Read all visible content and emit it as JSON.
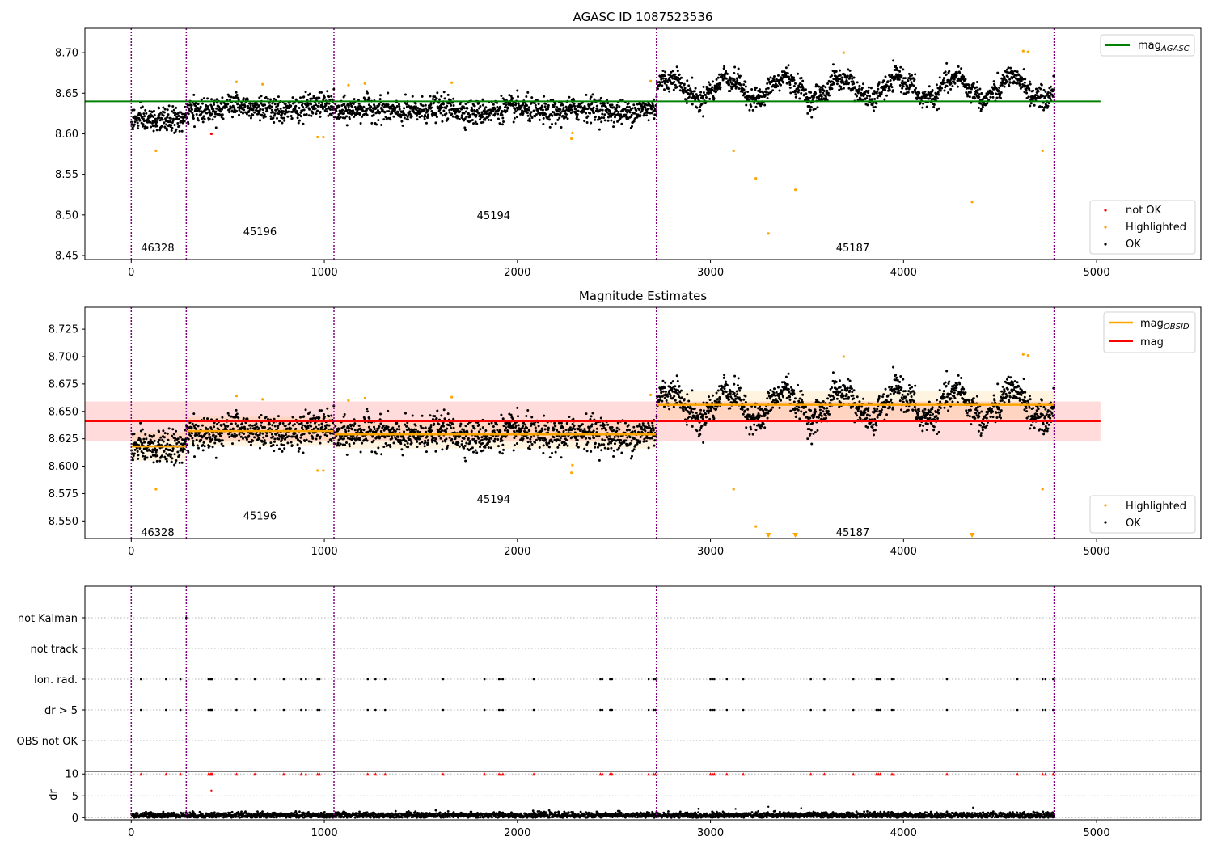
{
  "colors": {
    "ok": "#000000",
    "highlighted": "#ffa500",
    "not_ok": "#ff0000",
    "mag_agasc": "#008000",
    "mag_obsid": "#ffa500",
    "mag": "#ff0000",
    "obs_boundary": "#800080",
    "mag_band": "#ffcccc"
  },
  "chart_data": [
    {
      "type": "scatter",
      "title": "AGASC ID 1087523536",
      "xlim": [
        -240,
        5540
      ],
      "ylim": [
        8.445,
        8.73
      ],
      "xticks": [
        0,
        1000,
        2000,
        3000,
        4000,
        5000
      ],
      "yticks": [
        8.45,
        8.5,
        8.55,
        8.6,
        8.65,
        8.7
      ],
      "ytick_labels": [
        "8.45",
        "8.50",
        "8.55",
        "8.60",
        "8.65",
        "8.70"
      ],
      "mag_agasc": 8.64,
      "mag_agasc_xrange": [
        -240,
        5020
      ],
      "observations": [
        {
          "obsid": "46328",
          "x_start": 0,
          "x_end": 285,
          "label_y": 8.46,
          "base": 8.617
        },
        {
          "obsid": "45196",
          "x_start": 285,
          "x_end": 1050,
          "label_y": 8.48,
          "base": 8.632
        },
        {
          "obsid": "45194",
          "x_start": 1050,
          "x_end": 2720,
          "label_y": 8.5,
          "base": 8.629
        },
        {
          "obsid": "45187",
          "x_start": 2720,
          "x_end": 4780,
          "label_y": 8.46,
          "base": 8.656
        }
      ],
      "highlighted_points": [
        [
          128,
          8.579
        ],
        [
          545,
          8.664
        ],
        [
          680,
          8.661
        ],
        [
          965,
          8.596
        ],
        [
          995,
          8.596
        ],
        [
          1125,
          8.66
        ],
        [
          1210,
          8.662
        ],
        [
          1660,
          8.663
        ],
        [
          2280,
          8.594
        ],
        [
          2285,
          8.601
        ],
        [
          2690,
          8.665
        ],
        [
          3120,
          8.579
        ],
        [
          3235,
          8.545
        ],
        [
          3300,
          8.477
        ],
        [
          3440,
          8.531
        ],
        [
          3690,
          8.7
        ],
        [
          4355,
          8.516
        ],
        [
          4620,
          8.702
        ],
        [
          4645,
          8.701
        ],
        [
          4720,
          8.579
        ]
      ],
      "not_ok_points": [
        [
          415,
          8.6
        ]
      ],
      "legend_lines": [
        {
          "label": "mag",
          "sub": "AGASC"
        }
      ],
      "legend_points": [
        "not OK",
        "Highlighted",
        "OK"
      ]
    },
    {
      "type": "scatter",
      "title": "Magnitude Estimates",
      "xlim": [
        -240,
        5540
      ],
      "ylim": [
        8.534,
        8.745
      ],
      "xticks": [
        0,
        1000,
        2000,
        3000,
        4000,
        5000
      ],
      "yticks": [
        8.55,
        8.575,
        8.6,
        8.625,
        8.65,
        8.675,
        8.7,
        8.725
      ],
      "ytick_labels": [
        "8.550",
        "8.575",
        "8.600",
        "8.625",
        "8.650",
        "8.675",
        "8.700",
        "8.725"
      ],
      "mag": 8.641,
      "mag_band": [
        8.623,
        8.659
      ],
      "mag_xrange": [
        -240,
        5020
      ],
      "mag_obsid": [
        {
          "x_start": 0,
          "x_end": 285,
          "value": 8.618
        },
        {
          "x_start": 285,
          "x_end": 1050,
          "value": 8.632
        },
        {
          "x_start": 1050,
          "x_end": 2720,
          "value": 8.629
        },
        {
          "x_start": 2720,
          "x_end": 4780,
          "value": 8.656
        }
      ],
      "observation_labels": [
        {
          "obsid": "46328",
          "x": 50,
          "y": 8.54
        },
        {
          "obsid": "45196",
          "x": 580,
          "y": 8.555
        },
        {
          "obsid": "45194",
          "x": 1790,
          "y": 8.57
        },
        {
          "obsid": "45187",
          "x": 3650,
          "y": 8.54
        }
      ],
      "highlighted_points": [
        [
          128,
          8.579
        ],
        [
          545,
          8.664
        ],
        [
          680,
          8.661
        ],
        [
          965,
          8.596
        ],
        [
          995,
          8.596
        ],
        [
          1125,
          8.66
        ],
        [
          1210,
          8.662
        ],
        [
          1660,
          8.663
        ],
        [
          2280,
          8.594
        ],
        [
          2285,
          8.601
        ],
        [
          2690,
          8.665
        ],
        [
          3120,
          8.579
        ],
        [
          3235,
          8.545
        ],
        [
          3690,
          8.7
        ],
        [
          4620,
          8.702
        ],
        [
          4645,
          8.701
        ],
        [
          4720,
          8.579
        ]
      ],
      "offscale_markers": [
        3300,
        3440,
        4355
      ],
      "legend_lines": [
        {
          "label": "mag",
          "sub": "OBSID"
        },
        {
          "label": "mag",
          "sub": ""
        }
      ],
      "legend_points": [
        "Highlighted",
        "OK"
      ]
    },
    {
      "type": "scatter",
      "xlim": [
        -240,
        5540
      ],
      "flag_rows": [
        "not Kalman",
        "not track",
        "Ion. rad.",
        "dr > 5",
        "OBS not OK"
      ],
      "flag_events": {
        "not Kalman": [
          285
        ],
        "not track": [],
        "Ion. rad.": [
          50,
          180,
          255,
          400,
          410,
          415,
          420,
          545,
          640,
          790,
          880,
          905,
          965,
          975,
          1225,
          1265,
          1315,
          1615,
          1830,
          1905,
          1915,
          1925,
          2085,
          2430,
          2440,
          2480,
          2490,
          2680,
          2705,
          2715,
          3000,
          3010,
          3020,
          3085,
          3170,
          3520,
          3590,
          3740,
          3860,
          3870,
          3880,
          3940,
          3950,
          4225,
          4590,
          4720,
          4735,
          4775
        ],
        "dr > 5": [
          50,
          180,
          255,
          400,
          410,
          415,
          420,
          545,
          640,
          790,
          880,
          905,
          965,
          975,
          1225,
          1265,
          1315,
          1615,
          1830,
          1905,
          1915,
          1925,
          2085,
          2430,
          2440,
          2480,
          2490,
          2680,
          2705,
          2715,
          3000,
          3010,
          3020,
          3085,
          3170,
          3520,
          3590,
          3740,
          3860,
          3870,
          3880,
          3940,
          3950,
          4225,
          4590,
          4720,
          4735,
          4775
        ],
        "OBS not OK": []
      },
      "dr_ylabel": "dr",
      "dr_ylim": [
        -0.5,
        10.6
      ],
      "dr_yticks": [
        0,
        5,
        10
      ],
      "dr_clipped_points": [
        50,
        180,
        255,
        400,
        410,
        415,
        420,
        545,
        640,
        790,
        880,
        905,
        965,
        975,
        1225,
        1265,
        1315,
        1615,
        1830,
        1905,
        1915,
        1925,
        2085,
        2430,
        2440,
        2480,
        2490,
        2680,
        2705,
        2715,
        3000,
        3010,
        3020,
        3085,
        3170,
        3520,
        3590,
        3740,
        3860,
        3870,
        3880,
        3940,
        3950,
        4225,
        4590,
        4720,
        4735,
        4775
      ],
      "dr_extra_points": [
        [
          415,
          6.2
        ],
        [
          3130,
          2.0
        ],
        [
          3300,
          2.5
        ],
        [
          3470,
          2.2
        ],
        [
          4360,
          2.3
        ]
      ],
      "xticks": [
        0,
        1000,
        2000,
        3000,
        4000,
        5000
      ]
    }
  ]
}
